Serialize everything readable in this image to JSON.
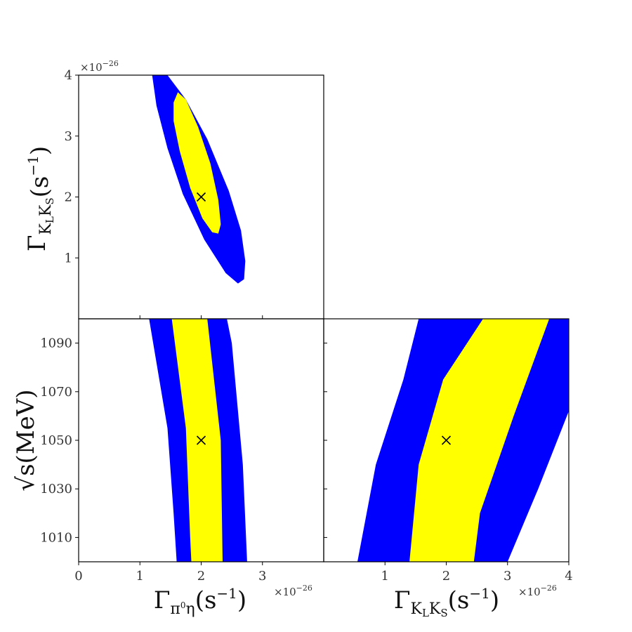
{
  "colors": {
    "outer": "#0000ff",
    "inner": "#ffff00",
    "marker": "#000000"
  },
  "chart_data": [
    {
      "type": "contour",
      "panel": "top-left",
      "x": {
        "ticks": [],
        "range": [
          0,
          4
        ]
      },
      "y": {
        "label_base": "Γ",
        "label_sub": "K",
        "label_sub2": "L",
        "label_sub3": "K",
        "label_sub4": "S",
        "label_unit": "(s",
        "label_exp": "−1",
        "label_close": ")",
        "ticks": [
          "1",
          "2",
          "3",
          "4"
        ],
        "tick_values": [
          1,
          2,
          3,
          4
        ],
        "range": [
          0,
          4
        ],
        "multiplier": "×10",
        "multiplier_exp": "−26"
      },
      "best_fit": {
        "x": 2.0,
        "y": 2.0
      },
      "contours": {
        "outer": [
          [
            1.2,
            4.0
          ],
          [
            1.45,
            4.0
          ],
          [
            1.75,
            3.6
          ],
          [
            2.1,
            2.95
          ],
          [
            2.45,
            2.1
          ],
          [
            2.65,
            1.45
          ],
          [
            2.72,
            0.95
          ],
          [
            2.7,
            0.65
          ],
          [
            2.6,
            0.58
          ],
          [
            2.4,
            0.75
          ],
          [
            2.05,
            1.3
          ],
          [
            1.7,
            2.05
          ],
          [
            1.45,
            2.8
          ],
          [
            1.27,
            3.5
          ]
        ],
        "inner": [
          [
            1.55,
            3.55
          ],
          [
            1.62,
            3.72
          ],
          [
            1.75,
            3.6
          ],
          [
            1.95,
            3.15
          ],
          [
            2.15,
            2.55
          ],
          [
            2.28,
            1.95
          ],
          [
            2.32,
            1.55
          ],
          [
            2.28,
            1.4
          ],
          [
            2.18,
            1.42
          ],
          [
            2.02,
            1.65
          ],
          [
            1.82,
            2.15
          ],
          [
            1.65,
            2.75
          ],
          [
            1.55,
            3.25
          ]
        ]
      }
    },
    {
      "type": "contour",
      "panel": "bottom-left",
      "x": {
        "label_base": "Γ",
        "label_sub": "π",
        "label_sub_sup": "0",
        "label_sub2": "η",
        "label_unit": "(s",
        "label_exp": "−1",
        "label_close": ")",
        "ticks": [
          "0",
          "1",
          "2",
          "3"
        ],
        "tick_values": [
          0,
          1,
          2,
          3
        ],
        "range": [
          0,
          4
        ],
        "multiplier": "×10",
        "multiplier_exp": "−26"
      },
      "y": {
        "label": "√s(MeV)",
        "ticks": [
          "1010",
          "1030",
          "1050",
          "1070",
          "1090"
        ],
        "tick_values": [
          1010,
          1030,
          1050,
          1070,
          1090
        ],
        "range": [
          1000,
          1100
        ]
      },
      "best_fit": {
        "x": 2.0,
        "y": 1050
      },
      "contours": {
        "outer": [
          [
            1.15,
            1100
          ],
          [
            1.45,
            1055
          ],
          [
            1.55,
            1020
          ],
          [
            1.6,
            1000
          ],
          [
            2.75,
            1000
          ],
          [
            2.68,
            1040
          ],
          [
            2.5,
            1090
          ],
          [
            2.42,
            1100
          ]
        ],
        "inner": [
          [
            1.52,
            1100
          ],
          [
            1.75,
            1055
          ],
          [
            1.82,
            1010
          ],
          [
            1.84,
            1000
          ],
          [
            2.35,
            1000
          ],
          [
            2.32,
            1050
          ],
          [
            2.1,
            1100
          ]
        ]
      }
    },
    {
      "type": "contour",
      "panel": "bottom-right",
      "x": {
        "label_base": "Γ",
        "label_sub": "K",
        "label_sub2": "L",
        "label_sub3": "K",
        "label_sub4": "S",
        "label_unit": "(s",
        "label_exp": "−1",
        "label_close": ")",
        "ticks": [
          "1",
          "2",
          "3",
          "4"
        ],
        "tick_values": [
          1,
          2,
          3,
          4
        ],
        "range": [
          0,
          4
        ],
        "multiplier": "×10",
        "multiplier_exp": "−26"
      },
      "y": {
        "ticks": [],
        "range": [
          1000,
          1100
        ]
      },
      "best_fit": {
        "x": 2.0,
        "y": 1050
      },
      "contours": {
        "outer": [
          [
            0.55,
            1000
          ],
          [
            0.85,
            1040
          ],
          [
            1.3,
            1075
          ],
          [
            1.55,
            1100
          ],
          [
            4.0,
            1100
          ],
          [
            4.0,
            1062
          ],
          [
            3.5,
            1030
          ],
          [
            3.0,
            1000
          ]
        ],
        "inner": [
          [
            1.4,
            1000
          ],
          [
            1.55,
            1040
          ],
          [
            1.95,
            1075
          ],
          [
            2.6,
            1100
          ],
          [
            3.68,
            1100
          ],
          [
            3.1,
            1060
          ],
          [
            2.55,
            1020
          ],
          [
            2.45,
            1000
          ]
        ]
      }
    }
  ]
}
